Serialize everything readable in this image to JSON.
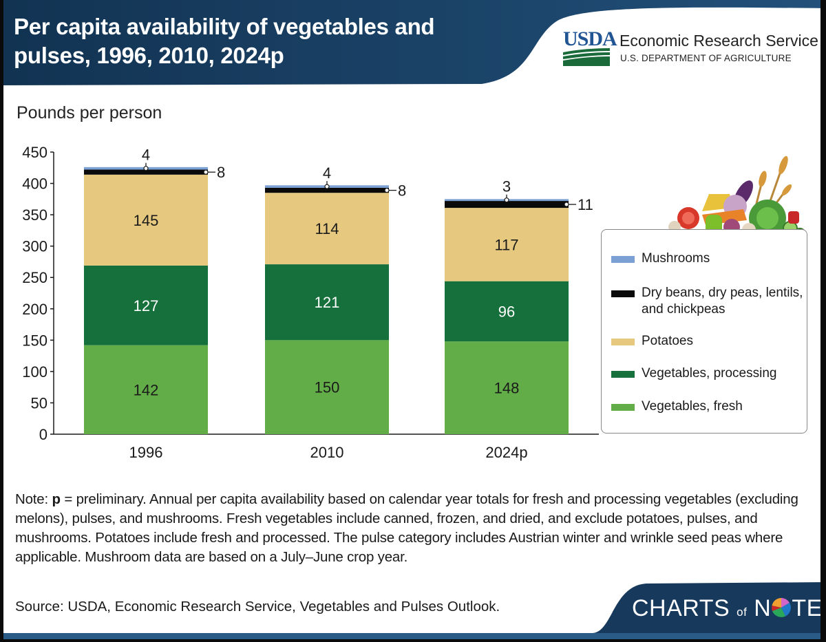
{
  "header": {
    "title_line1": "Per capita availability of vegetables and",
    "title_line2": "pulses, 1996, 2010, 2024p",
    "logo": {
      "usda": "USDA",
      "agency": "Economic Research Service",
      "department": "U.S. DEPARTMENT OF AGRICULTURE"
    }
  },
  "colors": {
    "header_blue": "#1b3f63",
    "mushrooms": "#7aa0d4",
    "pulses": "#0a0a0a",
    "potatoes": "#e6c97f",
    "veg_processing": "#15703b",
    "veg_fresh": "#62ad47"
  },
  "chart_data": {
    "type": "bar",
    "stacked": true,
    "title": "Per capita availability of vegetables and pulses, 1996, 2010, 2024p",
    "ylabel": "Pounds per person",
    "xlabel": "",
    "ylim": [
      0,
      450
    ],
    "yticks": [
      0,
      50,
      100,
      150,
      200,
      250,
      300,
      350,
      400,
      450
    ],
    "categories": [
      "1996",
      "2010",
      "2024p"
    ],
    "grid": false,
    "legend_position": "right",
    "series": [
      {
        "name": "Vegetables, fresh",
        "key": "veg_fresh",
        "values": [
          142,
          150,
          148
        ],
        "label_color": "#1a1a1a"
      },
      {
        "name": "Vegetables, processing",
        "key": "veg_processing",
        "values": [
          127,
          121,
          96
        ],
        "label_color": "#ffffff"
      },
      {
        "name": "Potatoes",
        "key": "potatoes",
        "values": [
          145,
          114,
          117
        ],
        "label_color": "#1a1a1a"
      },
      {
        "name": "Dry beans, dry peas, lentils, and chickpeas",
        "key": "pulses",
        "values": [
          8,
          8,
          11
        ],
        "label_color": "#1a1a1a",
        "label_style": "callout-right"
      },
      {
        "name": "Mushrooms",
        "key": "mushrooms",
        "values": [
          4,
          4,
          3
        ],
        "label_color": "#1a1a1a",
        "label_style": "callout-top"
      }
    ]
  },
  "legend": {
    "items": [
      {
        "label": "Mushrooms",
        "key": "mushrooms"
      },
      {
        "label": "Dry beans, dry peas, lentils, and chickpeas",
        "key": "pulses"
      },
      {
        "label": "Potatoes",
        "key": "potatoes"
      },
      {
        "label": "Vegetables, processing",
        "key": "veg_processing"
      },
      {
        "label": "Vegetables, fresh",
        "key": "veg_fresh"
      }
    ]
  },
  "footer": {
    "note_prefix": "Note: ",
    "note_bold": "p",
    "note_text": " = preliminary. Annual per capita availability based on calendar year totals for fresh and processing vegetables (excluding melons), pulses, and mushrooms. Fresh vegetables include canned, frozen, and dried, and exclude potatoes, pulses, and mushrooms. Potatoes include fresh and processed. The pulse category includes Austrian winter and wrinkle seed peas where applicable. Mushroom data are based on a July–June crop year.",
    "source": "Source: USDA, Economic Research Service, Vegetables and Pulses Outlook.",
    "brand_charts": "CHARTS",
    "brand_of": "of",
    "brand_n": "N",
    "brand_te": "TE"
  }
}
